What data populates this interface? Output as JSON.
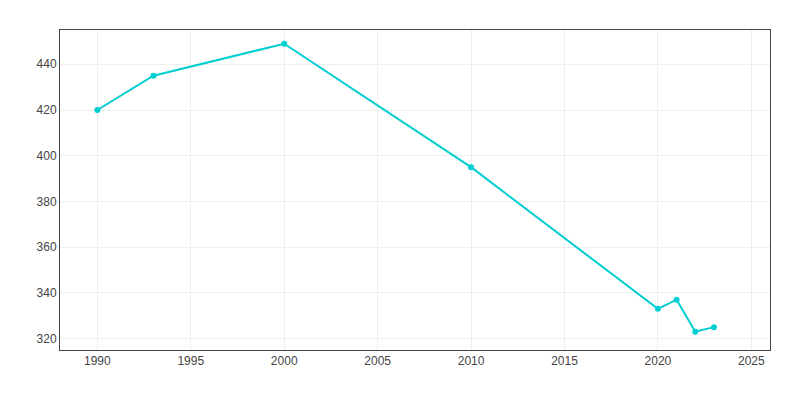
{
  "chart_data": {
    "type": "line",
    "x": [
      1990,
      1993,
      2000,
      2010,
      2020,
      2021,
      2022,
      2023
    ],
    "values": [
      420,
      435,
      449,
      395,
      333,
      337,
      323,
      325
    ],
    "color": "#00CED1",
    "marker": "circle",
    "xlim": [
      1988,
      2026
    ],
    "ylim": [
      315,
      455
    ],
    "xticks": [
      1990,
      1995,
      2000,
      2005,
      2010,
      2015,
      2020,
      2025
    ],
    "yticks": [
      320,
      340,
      360,
      380,
      400,
      420,
      440
    ],
    "grid": true
  }
}
